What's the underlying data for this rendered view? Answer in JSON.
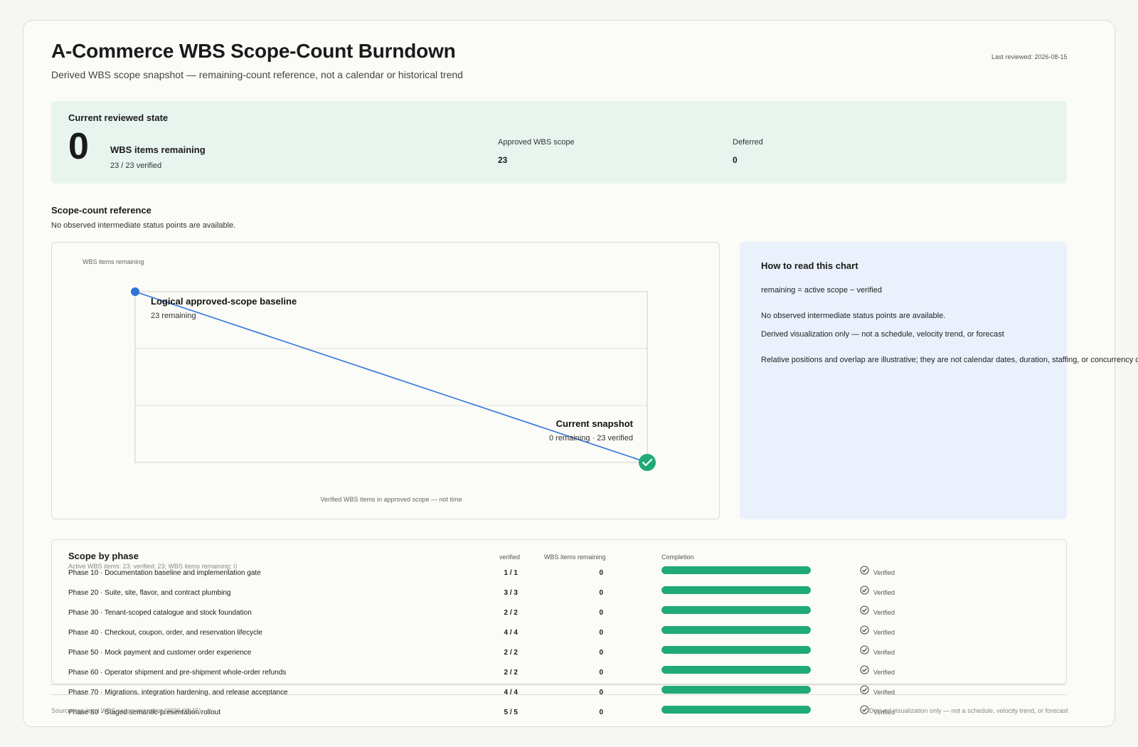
{
  "header": {
    "title": "A-Commerce WBS Scope-Count Burndown",
    "subtitle": "Derived WBS scope snapshot — remaining-count reference, not a calendar or historical trend",
    "last_reviewed": "Last reviewed: 2026-08-15"
  },
  "current_state": {
    "heading": "Current reviewed state",
    "remaining_value": "0",
    "remaining_label": "WBS items remaining",
    "verified_text": "23 / 23 verified",
    "approved_label": "Approved WBS scope",
    "approved_value": "23",
    "deferred_label": "Deferred",
    "deferred_value": "0"
  },
  "scope_reference": {
    "heading": "Scope-count reference",
    "note": "No observed intermediate status points are available."
  },
  "chart_data": {
    "type": "line",
    "title": "",
    "ylabel": "WBS items remaining",
    "xlabel": "Verified WBS items in approved scope — not time",
    "xlim": [
      0,
      23
    ],
    "ylim": [
      0,
      23
    ],
    "grid": true,
    "series": [
      {
        "x": [
          0,
          23
        ],
        "values": [
          23,
          0
        ]
      }
    ],
    "annotations": [
      {
        "label": "Logical approved-scope baseline",
        "sub": "23 remaining",
        "x": 0,
        "y": 23
      },
      {
        "label": "Current snapshot",
        "sub": "0 remaining · 23 verified",
        "x": 23,
        "y": 0
      }
    ],
    "colors": {
      "line": "#2f73d6",
      "start": "#2f73d6",
      "end": "#1faa77"
    }
  },
  "how_to_read": {
    "title": "How to read this chart",
    "formula": "remaining = active scope − verified",
    "note1": "No observed intermediate status points are available.",
    "note2": "Derived visualization only — not a schedule, velocity trend, or forecast",
    "note3": "Relative positions and overlap are illustrative; they are not calendar dates, duration, staffing, or concurrency c"
  },
  "phases": {
    "heading": "Scope by phase",
    "summary": "Active WBS items: 23; verified: 23; WBS items remaining: 0",
    "columns": {
      "verified": "verified",
      "remaining": "WBS items remaining",
      "completion": "Completion"
    },
    "rows": [
      {
        "name": "Phase 10 · Documentation baseline and implementation gate",
        "verified": "1 / 1",
        "remaining": "0",
        "completion": 1.0,
        "status": "Verified"
      },
      {
        "name": "Phase 20 · Suite, site, flavor, and contract plumbing",
        "verified": "3 / 3",
        "remaining": "0",
        "completion": 1.0,
        "status": "Verified"
      },
      {
        "name": "Phase 30 · Tenant-scoped catalogue and stock foundation",
        "verified": "2 / 2",
        "remaining": "0",
        "completion": 1.0,
        "status": "Verified"
      },
      {
        "name": "Phase 40 · Checkout, coupon, order, and reservation lifecycle",
        "verified": "4 / 4",
        "remaining": "0",
        "completion": 1.0,
        "status": "Verified"
      },
      {
        "name": "Phase 50 · Mock payment and customer order experience",
        "verified": "2 / 2",
        "remaining": "0",
        "completion": 1.0,
        "status": "Verified"
      },
      {
        "name": "Phase 60 · Operator shipment and pre-shipment whole-order refunds",
        "verified": "2 / 2",
        "remaining": "0",
        "completion": 1.0,
        "status": "Verified"
      },
      {
        "name": "Phase 70 · Migrations, integration hardening, and release acceptance",
        "verified": "4 / 4",
        "remaining": "0",
        "completion": 1.0,
        "status": "Verified"
      },
      {
        "name": "Phase 80 · Staged semantic-presentation rollout",
        "verified": "5 / 5",
        "remaining": "0",
        "completion": 1.0,
        "status": "Verified"
      }
    ]
  },
  "footer": {
    "source": "Source: top-level WBS scope snapshot (2026-08-15)",
    "disclaimer": "Derived visualization only — not a schedule, velocity trend, or forecast"
  }
}
